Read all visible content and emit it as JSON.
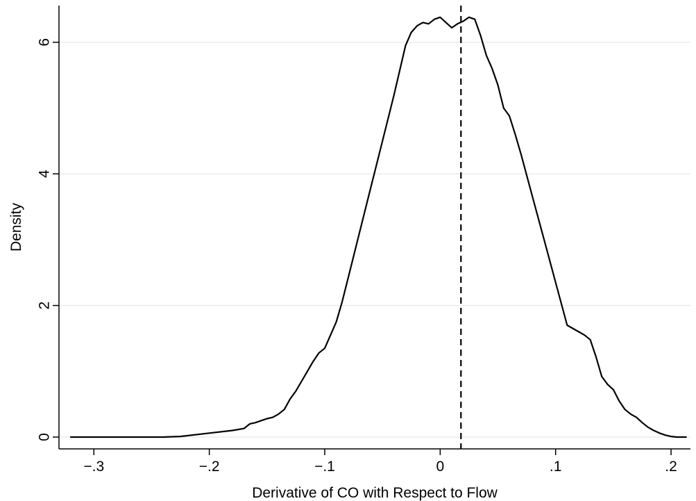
{
  "chart_data": {
    "type": "line",
    "title": "",
    "xlabel": "Derivative of CO with Respect to Flow",
    "ylabel": "Density",
    "xlim": [
      -0.32,
      0.215
    ],
    "ylim": [
      0,
      6.6
    ],
    "x_ticks": [
      {
        "value": -0.3,
        "label": "−.3"
      },
      {
        "value": -0.2,
        "label": "−.2"
      },
      {
        "value": -0.1,
        "label": "−.1"
      },
      {
        "value": 0,
        "label": "0"
      },
      {
        "value": 0.1,
        "label": ".1"
      },
      {
        "value": 0.2,
        "label": ".2"
      }
    ],
    "y_ticks": [
      {
        "value": 0,
        "label": "0"
      },
      {
        "value": 2,
        "label": "2"
      },
      {
        "value": 4,
        "label": "4"
      },
      {
        "value": 6,
        "label": "6"
      }
    ],
    "grid": true,
    "legend": "none",
    "reference_line": {
      "x": 0.018,
      "style": "dashed"
    },
    "series": [
      {
        "x": [
          -0.32,
          -0.29,
          -0.26,
          -0.24,
          -0.225,
          -0.2,
          -0.18,
          -0.17,
          -0.165,
          -0.16,
          -0.155,
          -0.15,
          -0.145,
          -0.14,
          -0.135,
          -0.13,
          -0.125,
          -0.12,
          -0.115,
          -0.11,
          -0.105,
          -0.1,
          -0.095,
          -0.09,
          -0.085,
          -0.08,
          -0.07,
          -0.06,
          -0.05,
          -0.04,
          -0.03,
          -0.025,
          -0.02,
          -0.015,
          -0.01,
          -0.005,
          0,
          0.005,
          0.01,
          0.015,
          0.02,
          0.025,
          0.03,
          0.035,
          0.04,
          0.045,
          0.05,
          0.055,
          0.06,
          0.065,
          0.07,
          0.08,
          0.09,
          0.1,
          0.11,
          0.12,
          0.125,
          0.13,
          0.135,
          0.14,
          0.145,
          0.15,
          0.155,
          0.16,
          0.165,
          0.17,
          0.175,
          0.18,
          0.185,
          0.19,
          0.195,
          0.2,
          0.205,
          0.213
        ],
        "y": [
          0,
          0,
          0,
          0,
          0.01,
          0.06,
          0.1,
          0.13,
          0.2,
          0.22,
          0.25,
          0.28,
          0.3,
          0.35,
          0.42,
          0.58,
          0.7,
          0.85,
          1.0,
          1.15,
          1.28,
          1.35,
          1.55,
          1.75,
          2.05,
          2.4,
          3.1,
          3.8,
          4.5,
          5.2,
          5.95,
          6.15,
          6.25,
          6.3,
          6.28,
          6.35,
          6.38,
          6.3,
          6.22,
          6.28,
          6.32,
          6.38,
          6.35,
          6.1,
          5.8,
          5.6,
          5.35,
          5.0,
          4.88,
          4.6,
          4.3,
          3.65,
          3.0,
          2.35,
          1.7,
          1.6,
          1.55,
          1.48,
          1.22,
          0.92,
          0.8,
          0.72,
          0.55,
          0.42,
          0.35,
          0.3,
          0.22,
          0.15,
          0.1,
          0.06,
          0.03,
          0.01,
          0,
          0
        ]
      }
    ]
  }
}
